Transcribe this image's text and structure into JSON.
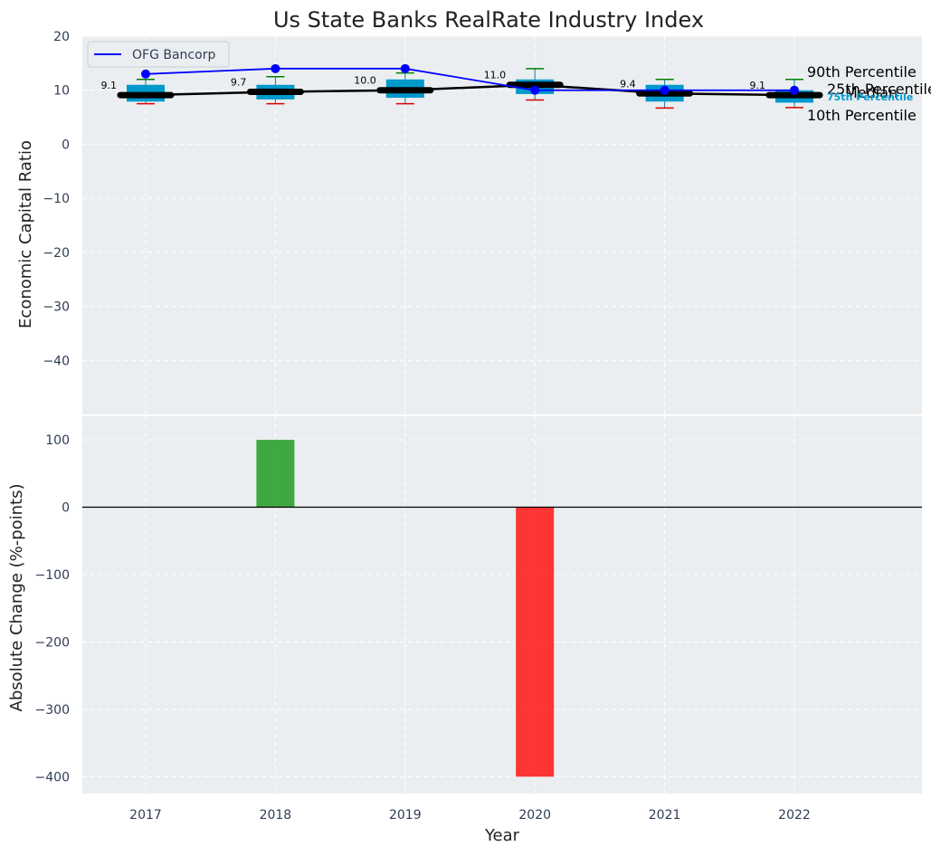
{
  "chart_data": {
    "type": "box+line+bar",
    "title": "Us State Banks RealRate Industry Index",
    "xlabel": "Year",
    "categories": [
      "2017",
      "2018",
      "2019",
      "2020",
      "2021",
      "2022"
    ],
    "top_panel": {
      "ylabel": "Economic Capital Ratio",
      "ylim": [
        -50,
        20
      ],
      "yticks": [
        20,
        10,
        0,
        -10,
        -20,
        -30,
        -40
      ],
      "ytick_labels": [
        "20",
        "10",
        "0",
        "−10",
        "−20",
        "−30",
        "−40"
      ],
      "grid": true,
      "legend": {
        "position": "top-left",
        "entries": [
          "OFG Bancorp"
        ]
      },
      "percentiles": {
        "p10": [
          7.5,
          7.5,
          7.5,
          8.2,
          6.7,
          6.8
        ],
        "p25": [
          7.9,
          8.3,
          8.6,
          9.3,
          7.9,
          7.7
        ],
        "median": [
          9.1,
          9.7,
          10.0,
          11.0,
          9.4,
          9.1
        ],
        "p75": [
          11.0,
          11.0,
          12.0,
          12.0,
          11.0,
          10.0
        ],
        "p90": [
          12.0,
          12.5,
          13.2,
          14.0,
          12.0,
          12.0
        ]
      },
      "median_labels": [
        "9.1",
        "9.7",
        "10.0",
        "11.0",
        "9.4",
        "9.1"
      ],
      "series": [
        {
          "name": "OFG Bancorp",
          "values": [
            13,
            14,
            14,
            10,
            10,
            10
          ],
          "color": "#0000ff"
        }
      ],
      "annotations": {
        "p90_label": "90th Percentile",
        "median_label": "Median",
        "p10_label": "10th Percentile",
        "p25_label": "25th Percentile",
        "p75_label": "75th Percentile"
      }
    },
    "bottom_panel": {
      "type": "bar",
      "ylabel": "Absolute Change (%-points)",
      "ylim": [
        -425,
        135
      ],
      "yticks": [
        100,
        0,
        -100,
        -200,
        -300,
        -400
      ],
      "ytick_labels": [
        "100",
        "0",
        "−100",
        "−200",
        "−300",
        "−400"
      ],
      "values": [
        0,
        100,
        0,
        -400,
        0,
        0
      ],
      "positive_color": "#2ca02c",
      "negative_color": "#ff2020"
    },
    "colors": {
      "box": "#0099cc",
      "median": "#000000",
      "p90_whisker": "#008000",
      "p10_whisker": "#dd0000",
      "panel_bg": "#eaeef0",
      "series_line": "#0000ff"
    }
  }
}
